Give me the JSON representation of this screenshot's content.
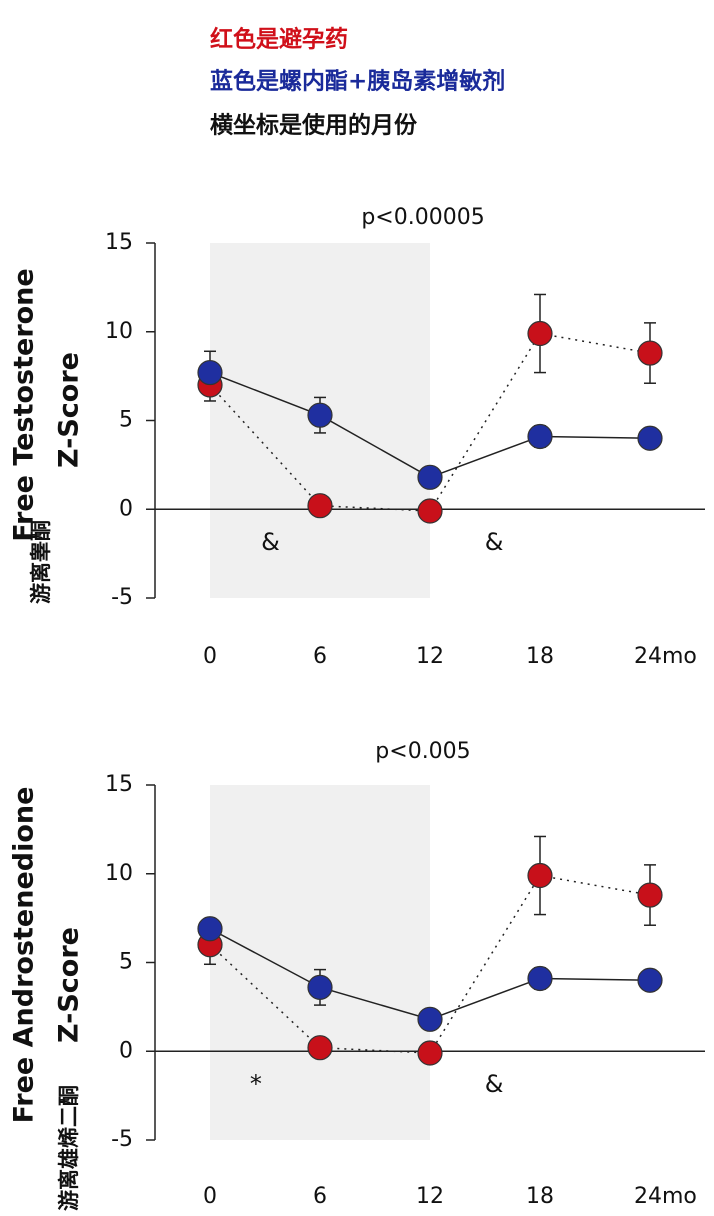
{
  "header": {
    "lines": [
      {
        "text": "红色是避孕药",
        "color": "#d0101a"
      },
      {
        "text": "蓝色是螺内酯+胰岛素增敏剂",
        "color": "#1a2a9a"
      },
      {
        "text": "横坐标是使用的月份",
        "color": "#111111"
      }
    ]
  },
  "chart_data": [
    {
      "type": "line",
      "title": "p<0.00005",
      "ylabel": "Free Testosterone",
      "ylabel2": "Z-Score",
      "ylabel_cn": "游离睾酮",
      "x": [
        0,
        6,
        12,
        18,
        24
      ],
      "xticks": [
        0,
        6,
        12,
        18,
        {
          "value": 24,
          "label": "24mo"
        }
      ],
      "xlim": [
        -3,
        27
      ],
      "ylim": [
        -5,
        15
      ],
      "yticks": [
        -5,
        0,
        5,
        10,
        15
      ],
      "shade_x": [
        0,
        12
      ],
      "zero_line": true,
      "series": [
        {
          "color": "#c8101a",
          "line_style": "dotted",
          "values": [
            7.0,
            0.2,
            -0.1,
            9.9,
            8.8
          ],
          "errors": [
            0.9,
            null,
            null,
            2.2,
            1.7
          ]
        },
        {
          "color": "#1f2fa0",
          "line_style": "solid",
          "values": [
            7.7,
            5.3,
            1.8,
            4.1,
            4.0
          ],
          "errors": [
            1.2,
            1.0,
            null,
            0.6,
            null
          ]
        }
      ],
      "annotations": [
        {
          "text": "&",
          "x": 3.3,
          "y": -1.9
        },
        {
          "text": "&",
          "x": 15.5,
          "y": -1.9
        }
      ]
    },
    {
      "type": "line",
      "title": "p<0.005",
      "ylabel": "Free Androstenedione",
      "ylabel2": "Z-Score",
      "ylabel_cn": "游离雄烯二酮",
      "x": [
        0,
        6,
        12,
        18,
        24
      ],
      "xticks": [
        0,
        6,
        12,
        18,
        {
          "value": 24,
          "label": "24mo"
        }
      ],
      "xlim": [
        -3,
        27
      ],
      "ylim": [
        -5,
        15
      ],
      "yticks": [
        -5,
        0,
        5,
        10,
        15
      ],
      "shade_x": [
        0,
        12
      ],
      "zero_line": true,
      "series": [
        {
          "color": "#c8101a",
          "line_style": "dotted",
          "values": [
            6.0,
            0.2,
            -0.1,
            9.9,
            8.8
          ],
          "errors": [
            1.1,
            null,
            null,
            2.2,
            1.7
          ]
        },
        {
          "color": "#1f2fa0",
          "line_style": "solid",
          "values": [
            6.9,
            3.6,
            1.8,
            4.1,
            4.0
          ],
          "errors": [
            null,
            1.0,
            null,
            0.6,
            null
          ]
        }
      ],
      "annotations": [
        {
          "text": "*",
          "x": 2.5,
          "y": -1.9
        },
        {
          "text": "&",
          "x": 15.5,
          "y": -1.9
        }
      ]
    }
  ]
}
